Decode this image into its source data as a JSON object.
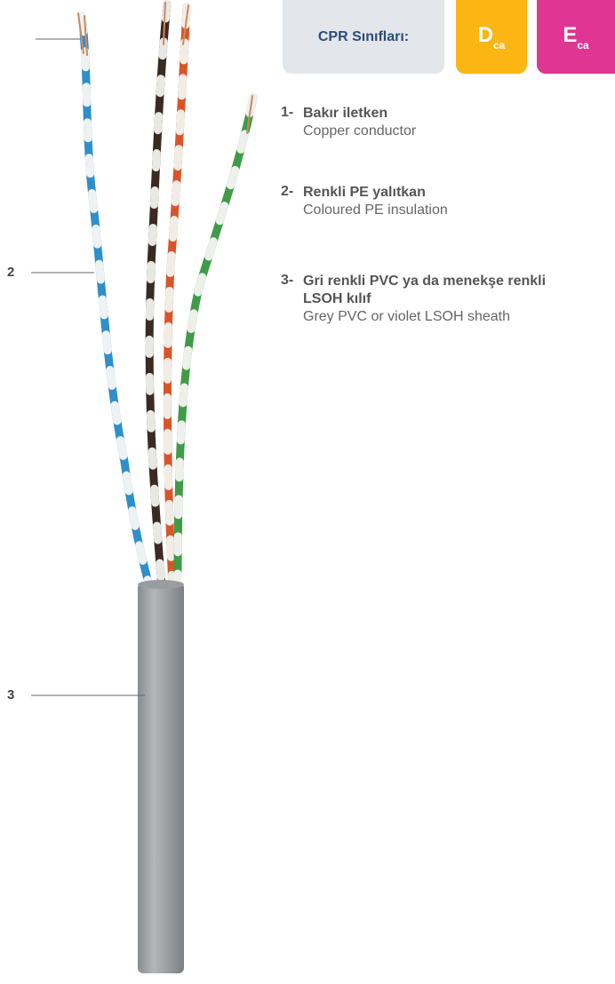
{
  "badges": {
    "label": "CPR Sınıfları:",
    "classes": [
      {
        "letter": "D",
        "sub": "ca"
      },
      {
        "letter": "E",
        "sub": "ca"
      }
    ]
  },
  "callouts": [
    "2",
    "3"
  ],
  "components": [
    {
      "number": "1-",
      "tr": "Bakır iletken",
      "en": "Copper conductor"
    },
    {
      "number": "2-",
      "tr": "Renkli PE yalıtkan",
      "en": "Coloured PE insulation"
    },
    {
      "number": "3-",
      "tr": "Gri renkli PVC ya da menekşe renkli LSOH kılıf",
      "en": "Grey PVC or violet LSOH sheath"
    }
  ]
}
